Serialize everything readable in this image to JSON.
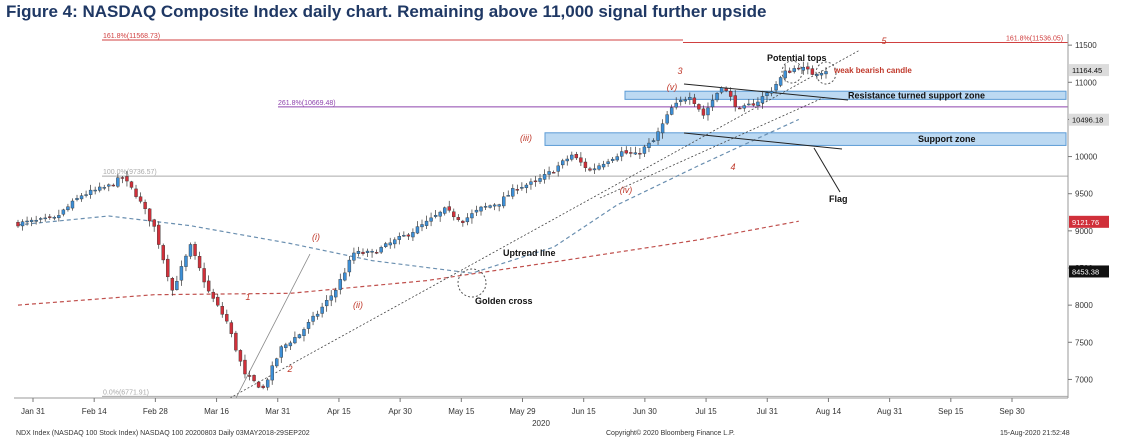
{
  "figure_title": "Figure 4: NASDAQ Composite Index daily chart. Remaining above 11,000 signal further upside",
  "chart_data": {
    "type": "candlestick",
    "x_ticks": [
      "Jan 31",
      "Feb 14",
      "Feb 28",
      "Mar 16",
      "Mar 31",
      "Apr 15",
      "Apr 30",
      "May 15",
      "May 29",
      "Jun 15",
      "Jun 30",
      "Jul 15",
      "Jul 31",
      "Aug 14",
      "Aug 31",
      "Sep 15",
      "Sep 30"
    ],
    "x_year_label": "2020",
    "y_ticks": [
      7000,
      7500,
      8000,
      8500,
      9000,
      9500,
      10000,
      10500,
      11000,
      11500
    ],
    "ylim": [
      6750,
      11650
    ],
    "price_tags": [
      {
        "label": "11164.45",
        "value": 11164.45,
        "style": "grey"
      },
      {
        "label": "10496.18",
        "value": 10496.18,
        "style": "grey"
      },
      {
        "label": "9121.76",
        "value": 9121.76,
        "style": "red"
      },
      {
        "label": "8453.38",
        "value": 8453.38,
        "style": "black"
      }
    ],
    "fib_levels": [
      {
        "label": "161.8%(11568.73)",
        "value": 11568.73,
        "color": "#d04040"
      },
      {
        "label": "161.8%(11536.05)",
        "value": 11536.05,
        "color": "#d04040"
      },
      {
        "label": "261.8%(10669.48)",
        "value": 10669.48,
        "color": "#8e44ad"
      },
      {
        "label": "100.0%(9736.57)",
        "value": 9736.57,
        "color": "#aaaaaa"
      },
      {
        "label": "0.0%(6771.91)",
        "value": 6771.91,
        "color": "#aaaaaa"
      }
    ],
    "series": [
      {
        "value_points": [
          [
            0,
            9100
          ],
          [
            8,
            9160
          ],
          [
            14,
            9480
          ],
          [
            20,
            9600
          ],
          [
            23,
            9720
          ],
          [
            26,
            9490
          ],
          [
            30,
            9050
          ],
          [
            34,
            8200
          ],
          [
            38,
            8790
          ],
          [
            42,
            8180
          ],
          [
            46,
            7780
          ],
          [
            50,
            7050
          ],
          [
            54,
            6880
          ],
          [
            58,
            7420
          ],
          [
            62,
            7610
          ],
          [
            66,
            7890
          ],
          [
            70,
            8210
          ],
          [
            74,
            8700
          ],
          [
            78,
            8700
          ],
          [
            82,
            8830
          ],
          [
            86,
            8960
          ],
          [
            90,
            9110
          ],
          [
            94,
            9280
          ],
          [
            98,
            9140
          ],
          [
            102,
            9300
          ],
          [
            106,
            9380
          ],
          [
            110,
            9590
          ],
          [
            114,
            9650
          ],
          [
            118,
            9820
          ],
          [
            122,
            10020
          ],
          [
            126,
            9810
          ],
          [
            130,
            9960
          ],
          [
            133,
            10060
          ],
          [
            136,
            10020
          ],
          [
            140,
            10210
          ],
          [
            144,
            10650
          ],
          [
            148,
            10830
          ],
          [
            151,
            10560
          ],
          [
            155,
            10960
          ],
          [
            159,
            10620
          ],
          [
            163,
            10750
          ],
          [
            166,
            10900
          ],
          [
            169,
            11130
          ],
          [
            172,
            11210
          ],
          [
            175,
            11120
          ],
          [
            178,
            11164
          ]
        ]
      }
    ],
    "moving_averages": [
      {
        "color": "#6a8fb0",
        "style": "dashed",
        "points": [
          [
            0,
            9080
          ],
          [
            20,
            9200
          ],
          [
            38,
            9070
          ],
          [
            60,
            8830
          ],
          [
            78,
            8600
          ],
          [
            100,
            8430
          ],
          [
            118,
            8780
          ],
          [
            132,
            9350
          ],
          [
            150,
            9880
          ],
          [
            172,
            10500
          ]
        ]
      },
      {
        "color": "#c0504d",
        "style": "dashed",
        "points": [
          [
            0,
            8000
          ],
          [
            30,
            8140
          ],
          [
            60,
            8160
          ],
          [
            90,
            8330
          ],
          [
            120,
            8600
          ],
          [
            150,
            8880
          ],
          [
            172,
            9130
          ]
        ]
      }
    ],
    "zones": [
      {
        "label": "Resistance turned support zone",
        "from": 10770,
        "to": 10880
      },
      {
        "label": "Support zone",
        "from": 10150,
        "to": 10320
      }
    ],
    "wave_labels": [
      "1",
      "2",
      "3",
      "4",
      "5",
      "(i)",
      "(ii)",
      "(iii)",
      "(iv)",
      "(v)"
    ],
    "annotations": {
      "potential_tops": "Potential tops",
      "weak_candle": "weak bearish candle",
      "flag": "Flag",
      "uptrend": "Uptrend line",
      "golden_cross": "Golden cross"
    },
    "grid": false,
    "legend": "none"
  },
  "footer": {
    "left": "NDX Index (NASDAQ 100 Stock Index) NASDAQ 100 20200803  Daily 03MAY2018-29SEP202",
    "center": "Copyright© 2020 Bloomberg Finance L.P.",
    "right": "15-Aug-2020 21:52:48"
  }
}
